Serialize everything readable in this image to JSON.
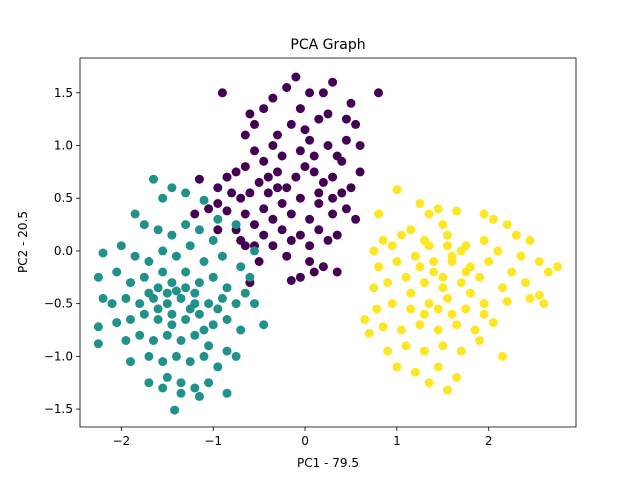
{
  "chart_data": {
    "type": "scatter",
    "title": "PCA Graph",
    "xlabel": "PC1 - 79.5",
    "ylabel": "PC2 - 20.5",
    "xlim": [
      -2.45,
      2.95
    ],
    "ylim": [
      -1.67,
      1.83
    ],
    "xticks": [
      -2,
      -1,
      0,
      1,
      2
    ],
    "xtick_labels": [
      "−2",
      "−1",
      "0",
      "1",
      "2"
    ],
    "yticks": [
      -1.5,
      -1.0,
      -0.5,
      0.0,
      0.5,
      1.0,
      1.5
    ],
    "ytick_labels": [
      "−1.5",
      "−1.0",
      "−0.5",
      "0.0",
      "0.5",
      "1.0",
      "1.5"
    ],
    "grid": false,
    "series": [
      {
        "color": "#440154",
        "points": [
          [
            -0.9,
            1.5
          ],
          [
            -0.65,
            1.1
          ],
          [
            -0.55,
            1.2
          ],
          [
            -0.45,
            1.35
          ],
          [
            -0.35,
            1.45
          ],
          [
            -0.2,
            1.55
          ],
          [
            -0.1,
            1.65
          ],
          [
            0.05,
            1.5
          ],
          [
            0.2,
            1.5
          ],
          [
            0.3,
            1.6
          ],
          [
            0.5,
            1.4
          ],
          [
            0.55,
            1.2
          ],
          [
            0.45,
            1.05
          ],
          [
            0.35,
            0.9
          ],
          [
            0.25,
            1.0
          ],
          [
            0.15,
            1.25
          ],
          [
            0.05,
            1.05
          ],
          [
            -0.05,
            0.95
          ],
          [
            -0.15,
            1.2
          ],
          [
            -0.25,
            0.9
          ],
          [
            -0.35,
            1.0
          ],
          [
            -0.45,
            0.85
          ],
          [
            -0.55,
            0.95
          ],
          [
            -0.65,
            0.8
          ],
          [
            -0.75,
            0.75
          ],
          [
            -0.85,
            0.7
          ],
          [
            -0.95,
            0.6
          ],
          [
            -1.15,
            0.68
          ],
          [
            -0.7,
            0.5
          ],
          [
            -0.6,
            0.55
          ],
          [
            -0.5,
            0.65
          ],
          [
            -0.4,
            0.7
          ],
          [
            -0.3,
            0.75
          ],
          [
            -0.2,
            0.6
          ],
          [
            -0.1,
            0.7
          ],
          [
            0.0,
            0.8
          ],
          [
            0.1,
            0.75
          ],
          [
            0.2,
            0.65
          ],
          [
            0.3,
            0.7
          ],
          [
            0.4,
            0.55
          ],
          [
            0.5,
            0.6
          ],
          [
            0.6,
            0.75
          ],
          [
            0.45,
            0.4
          ],
          [
            0.3,
            0.35
          ],
          [
            0.15,
            0.45
          ],
          [
            0.05,
            0.3
          ],
          [
            -0.05,
            0.5
          ],
          [
            -0.15,
            0.35
          ],
          [
            -0.25,
            0.45
          ],
          [
            -0.35,
            0.3
          ],
          [
            -0.45,
            0.4
          ],
          [
            -0.55,
            0.25
          ],
          [
            -0.65,
            0.35
          ],
          [
            -0.75,
            0.2
          ],
          [
            -0.85,
            0.38
          ],
          [
            -0.95,
            0.2
          ],
          [
            -1.05,
            0.4
          ],
          [
            -1.2,
            0.35
          ],
          [
            -0.7,
            0.1
          ],
          [
            -0.55,
            0.05
          ],
          [
            -0.45,
            0.15
          ],
          [
            -0.35,
            0.05
          ],
          [
            -0.25,
            0.2
          ],
          [
            -0.15,
            0.1
          ],
          [
            -0.05,
            0.15
          ],
          [
            0.05,
            0.05
          ],
          [
            0.15,
            0.2
          ],
          [
            0.25,
            0.1
          ],
          [
            0.35,
            0.15
          ],
          [
            0.05,
            -0.1
          ],
          [
            -0.2,
            -0.05
          ],
          [
            -0.5,
            -0.1
          ],
          [
            -0.65,
            0.05
          ],
          [
            0.1,
            -0.2
          ],
          [
            0.2,
            -0.15
          ],
          [
            0.35,
            -0.2
          ],
          [
            -0.05,
            -0.25
          ],
          [
            -0.15,
            -0.28
          ],
          [
            -0.6,
            -0.3
          ],
          [
            0.0,
            1.15
          ],
          [
            -0.3,
            1.1
          ],
          [
            0.1,
            0.9
          ],
          [
            0.4,
            0.85
          ],
          [
            -0.4,
            0.55
          ],
          [
            0.25,
            1.3
          ],
          [
            0.45,
            1.25
          ],
          [
            0.8,
            1.5
          ],
          [
            -0.6,
            1.3
          ],
          [
            -0.05,
            1.35
          ],
          [
            0.6,
            1.0
          ],
          [
            0.15,
            0.55
          ],
          [
            -0.8,
            0.55
          ],
          [
            -0.3,
            0.6
          ],
          [
            0.3,
            0.5
          ],
          [
            0.55,
            0.3
          ],
          [
            -0.95,
            0.45
          ]
        ]
      },
      {
        "color": "#21918c",
        "points": [
          [
            -1.65,
            0.68
          ],
          [
            -1.45,
            0.6
          ],
          [
            -1.3,
            0.55
          ],
          [
            -1.1,
            0.48
          ],
          [
            -0.95,
            0.3
          ],
          [
            -1.55,
            0.5
          ],
          [
            -1.85,
            0.35
          ],
          [
            -1.75,
            0.25
          ],
          [
            -1.6,
            0.2
          ],
          [
            -1.45,
            0.15
          ],
          [
            -1.3,
            0.25
          ],
          [
            -1.15,
            0.2
          ],
          [
            -1.0,
            0.1
          ],
          [
            -0.75,
            0.25
          ],
          [
            -0.55,
            0.0
          ],
          [
            -2.2,
            -0.02
          ],
          [
            -2.0,
            0.05
          ],
          [
            -1.85,
            -0.05
          ],
          [
            -1.7,
            -0.1
          ],
          [
            -1.55,
            0.0
          ],
          [
            -1.4,
            -0.05
          ],
          [
            -1.25,
            0.05
          ],
          [
            -1.1,
            -0.1
          ],
          [
            -0.9,
            -0.05
          ],
          [
            -0.7,
            -0.15
          ],
          [
            -0.6,
            -0.25
          ],
          [
            -2.25,
            -0.25
          ],
          [
            -2.05,
            -0.2
          ],
          [
            -1.9,
            -0.3
          ],
          [
            -1.75,
            -0.25
          ],
          [
            -1.6,
            -0.35
          ],
          [
            -1.45,
            -0.3
          ],
          [
            -1.3,
            -0.2
          ],
          [
            -1.15,
            -0.3
          ],
          [
            -1.0,
            -0.25
          ],
          [
            -0.85,
            -0.35
          ],
          [
            -0.65,
            -0.4
          ],
          [
            -2.2,
            -0.45
          ],
          [
            -2.1,
            -0.5
          ],
          [
            -1.95,
            -0.45
          ],
          [
            -1.8,
            -0.5
          ],
          [
            -1.65,
            -0.45
          ],
          [
            -1.5,
            -0.5
          ],
          [
            -1.35,
            -0.45
          ],
          [
            -1.2,
            -0.4
          ],
          [
            -1.05,
            -0.5
          ],
          [
            -0.9,
            -0.45
          ],
          [
            -0.75,
            -0.5
          ],
          [
            -0.55,
            -0.5
          ],
          [
            -0.45,
            -0.7
          ],
          [
            -2.25,
            -0.72
          ],
          [
            -2.05,
            -0.68
          ],
          [
            -1.9,
            -0.65
          ],
          [
            -1.75,
            -0.6
          ],
          [
            -1.6,
            -0.65
          ],
          [
            -1.45,
            -0.6
          ],
          [
            -1.3,
            -0.65
          ],
          [
            -1.15,
            -0.6
          ],
          [
            -1.0,
            -0.7
          ],
          [
            -0.85,
            -0.65
          ],
          [
            -0.7,
            -0.75
          ],
          [
            -2.25,
            -0.88
          ],
          [
            -1.95,
            -0.85
          ],
          [
            -1.8,
            -0.8
          ],
          [
            -1.65,
            -0.85
          ],
          [
            -1.5,
            -0.8
          ],
          [
            -1.35,
            -0.85
          ],
          [
            -1.2,
            -0.8
          ],
          [
            -1.05,
            -0.9
          ],
          [
            -0.85,
            -0.95
          ],
          [
            -0.75,
            -1.0
          ],
          [
            -1.9,
            -1.05
          ],
          [
            -1.7,
            -1.0
          ],
          [
            -1.55,
            -1.05
          ],
          [
            -1.4,
            -1.0
          ],
          [
            -1.25,
            -1.05
          ],
          [
            -1.1,
            -1.0
          ],
          [
            -0.95,
            -1.1
          ],
          [
            -1.7,
            -1.25
          ],
          [
            -1.5,
            -1.2
          ],
          [
            -1.35,
            -1.25
          ],
          [
            -1.2,
            -1.3
          ],
          [
            -1.05,
            -1.25
          ],
          [
            -1.55,
            -1.3
          ],
          [
            -1.35,
            -1.35
          ],
          [
            -0.85,
            -1.35
          ],
          [
            -1.15,
            -1.38
          ],
          [
            -1.42,
            -1.51
          ],
          [
            -1.4,
            -0.38
          ],
          [
            -1.25,
            -0.55
          ],
          [
            -1.6,
            -0.55
          ],
          [
            -1.5,
            -0.4
          ],
          [
            -1.2,
            -0.5
          ],
          [
            -1.45,
            -0.7
          ],
          [
            -1.3,
            -0.35
          ],
          [
            -1.55,
            -0.2
          ],
          [
            -1.1,
            -0.75
          ],
          [
            -0.95,
            -0.55
          ],
          [
            -1.7,
            -0.4
          ]
        ]
      },
      {
        "color": "#fde725",
        "points": [
          [
            1.0,
            0.58
          ],
          [
            0.8,
            0.35
          ],
          [
            1.25,
            0.45
          ],
          [
            1.35,
            0.35
          ],
          [
            1.45,
            0.4
          ],
          [
            1.65,
            0.38
          ],
          [
            1.95,
            0.35
          ],
          [
            2.05,
            0.3
          ],
          [
            2.2,
            0.25
          ],
          [
            1.5,
            0.25
          ],
          [
            1.15,
            0.2
          ],
          [
            0.85,
            0.1
          ],
          [
            2.3,
            0.15
          ],
          [
            2.45,
            0.1
          ],
          [
            0.75,
            0.0
          ],
          [
            0.95,
            0.05
          ],
          [
            1.05,
            0.15
          ],
          [
            1.3,
            0.1
          ],
          [
            1.55,
            0.15
          ],
          [
            1.75,
            0.05
          ],
          [
            1.95,
            0.1
          ],
          [
            2.1,
            0.0
          ],
          [
            2.35,
            -0.05
          ],
          [
            2.55,
            -0.1
          ],
          [
            2.65,
            -0.2
          ],
          [
            2.75,
            -0.15
          ],
          [
            0.8,
            -0.15
          ],
          [
            1.0,
            -0.1
          ],
          [
            1.2,
            -0.05
          ],
          [
            1.4,
            -0.1
          ],
          [
            1.6,
            -0.05
          ],
          [
            1.8,
            -0.15
          ],
          [
            2.0,
            -0.1
          ],
          [
            2.25,
            -0.2
          ],
          [
            0.75,
            -0.35
          ],
          [
            0.9,
            -0.3
          ],
          [
            1.1,
            -0.25
          ],
          [
            1.3,
            -0.3
          ],
          [
            1.5,
            -0.25
          ],
          [
            1.7,
            -0.3
          ],
          [
            1.9,
            -0.25
          ],
          [
            2.15,
            -0.35
          ],
          [
            2.4,
            -0.3
          ],
          [
            0.78,
            -0.55
          ],
          [
            0.95,
            -0.5
          ],
          [
            1.15,
            -0.55
          ],
          [
            1.35,
            -0.5
          ],
          [
            1.55,
            -0.45
          ],
          [
            1.75,
            -0.55
          ],
          [
            1.95,
            -0.5
          ],
          [
            2.2,
            -0.48
          ],
          [
            2.45,
            -0.45
          ],
          [
            2.6,
            -0.5
          ],
          [
            2.55,
            -0.42
          ],
          [
            0.7,
            -0.78
          ],
          [
            0.85,
            -0.72
          ],
          [
            1.05,
            -0.75
          ],
          [
            1.25,
            -0.7
          ],
          [
            1.45,
            -0.75
          ],
          [
            1.65,
            -0.7
          ],
          [
            1.85,
            -0.75
          ],
          [
            2.05,
            -0.68
          ],
          [
            0.9,
            -0.95
          ],
          [
            1.1,
            -0.9
          ],
          [
            1.3,
            -0.95
          ],
          [
            1.5,
            -0.9
          ],
          [
            1.7,
            -0.95
          ],
          [
            1.9,
            -0.85
          ],
          [
            2.15,
            -1.0
          ],
          [
            1.2,
            -1.15
          ],
          [
            1.45,
            -1.1
          ],
          [
            1.65,
            -1.2
          ],
          [
            1.35,
            -1.25
          ],
          [
            1.55,
            -1.32
          ],
          [
            1.0,
            -1.1
          ],
          [
            0.65,
            -0.65
          ],
          [
            1.6,
            -0.1
          ],
          [
            1.4,
            -0.2
          ],
          [
            1.7,
            0.0
          ],
          [
            1.5,
            -0.35
          ],
          [
            1.25,
            -0.15
          ],
          [
            1.8,
            -0.4
          ],
          [
            1.35,
            0.05
          ],
          [
            1.6,
            -0.6
          ],
          [
            1.15,
            -0.4
          ],
          [
            1.95,
            -0.6
          ],
          [
            1.45,
            -0.55
          ],
          [
            1.75,
            -0.2
          ],
          [
            1.55,
            0.05
          ],
          [
            1.3,
            -0.6
          ]
        ]
      }
    ]
  }
}
